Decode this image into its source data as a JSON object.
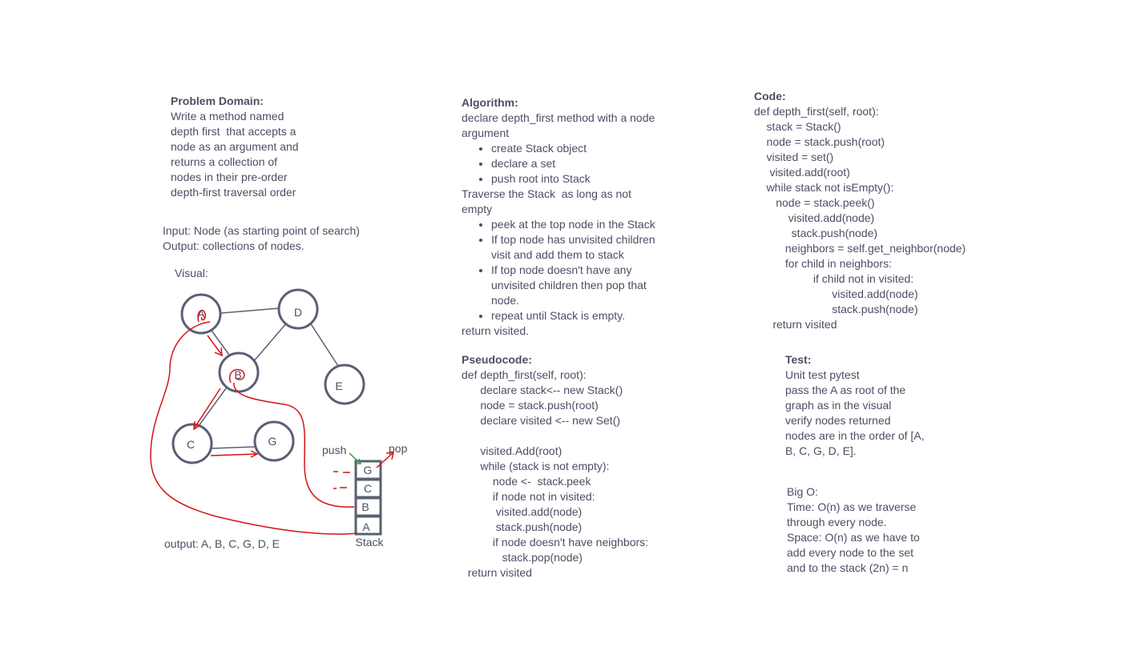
{
  "problem": {
    "heading": "Problem Domain:",
    "lines": [
      "Write a method named",
      "depth first  that accepts a",
      "node as an argument and",
      "returns a collection of",
      "nodes in their pre-order",
      "depth-first traversal order"
    ]
  },
  "io": {
    "input": "Input: Node (as starting point of search)",
    "output": "Output: collections of nodes."
  },
  "visual": {
    "label": "Visual:",
    "nodes": [
      "A",
      "D",
      "B",
      "E",
      "C",
      "G"
    ],
    "push_label": "push",
    "pop_label": "pop",
    "stack_items": [
      "G",
      "C",
      "B",
      "A"
    ],
    "stack_label": "Stack",
    "output_text": "output: A, B, C, G, D, E"
  },
  "algorithm": {
    "heading": "Algorithm:",
    "intro": [
      "declare depth_first method with a node",
      "argument"
    ],
    "bullets1": [
      "create Stack object",
      "declare a set",
      "push root into Stack"
    ],
    "traverse": [
      "Traverse the Stack  as long as not",
      "empty"
    ],
    "bullets2": [
      [
        "peek at the top node in the Stack"
      ],
      [
        "If top node has unvisited children",
        "visit and add them to stack"
      ],
      [
        "If top node doesn't have any",
        "unvisited children then pop that",
        "node."
      ],
      [
        "repeat until Stack is empty."
      ]
    ],
    "ret": "return visited."
  },
  "pseudocode": {
    "heading": "Pseudocode:",
    "lines": [
      "def depth_first(self, root):",
      "      declare stack<-- new Stack()",
      "      node = stack.push(root)",
      "      declare visited <-- new Set()",
      "",
      "      visited.Add(root)",
      "      while (stack is not empty):",
      "          node <-  stack.peek",
      "          if node not in visited:",
      "           visited.add(node)",
      "           stack.push(node)",
      "          if node doesn't have neighbors:",
      "             stack.pop(node)",
      "  return visited"
    ]
  },
  "code": {
    "heading": "Code:",
    "lines": [
      "def depth_first(self, root):",
      "    stack = Stack()",
      "    node = stack.push(root)",
      "    visited = set()",
      "     visited.add(root)",
      "    while stack not isEmpty():",
      "       node = stack.peek()",
      "           visited.add(node)",
      "            stack.push(node)",
      "          neighbors = self.get_neighbor(node)",
      "          for child in neighbors:",
      "                   if child not in visited:",
      "                         visited.add(node)",
      "                         stack.push(node)",
      "      return visited"
    ]
  },
  "test": {
    "heading": "Test:",
    "lines": [
      "Unit test pytest",
      "pass the A as root of the",
      "graph as in the visual",
      "verify nodes returned",
      "nodes are in the order of [A,",
      "B, C, G, D, E]."
    ]
  },
  "bigo": {
    "lines": [
      "Big O:",
      "Time: O(n) as we traverse",
      "through every node.",
      "Space: O(n) as we have to",
      "add every node to the set",
      "and to the stack (2n) = n"
    ]
  },
  "colors": {
    "text": "#4a4f63",
    "node_stroke": "#5a6072",
    "annotation_red": "#d31515",
    "push_green": "#2e9b3a"
  }
}
